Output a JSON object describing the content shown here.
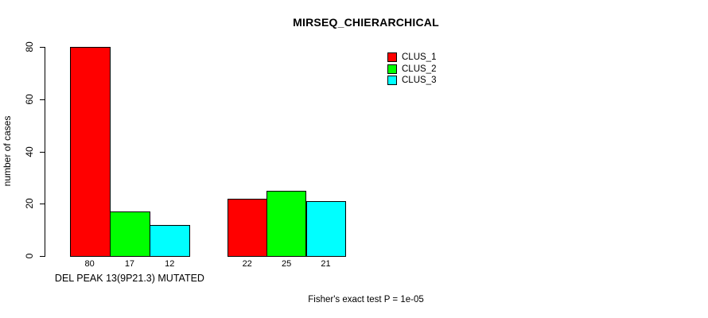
{
  "chart_data": {
    "type": "bar",
    "title": "MIRSEQ_CHIERARCHICAL",
    "ylabel": "number of cases",
    "ylim": [
      0,
      80
    ],
    "yticks": [
      0,
      20,
      40,
      60,
      80
    ],
    "grid": false,
    "legend_position": "top-right",
    "categories": [
      "DEL PEAK 13(9P21.3) MUTATED",
      ""
    ],
    "series": [
      {
        "name": "CLUS_1",
        "color": "#FF0000",
        "values": [
          80,
          22
        ]
      },
      {
        "name": "CLUS_2",
        "color": "#00FF00",
        "values": [
          17,
          25
        ]
      },
      {
        "name": "CLUS_3",
        "color": "#00FFFF",
        "values": [
          12,
          21
        ]
      }
    ],
    "footnote": "Fisher's exact test P = 1e-05"
  },
  "colors": {
    "axis": "#000000",
    "background": "#FFFFFF"
  }
}
